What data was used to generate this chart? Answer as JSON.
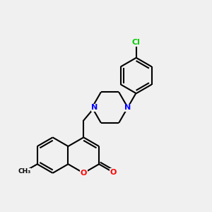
{
  "background_color": "#f0f0f0",
  "bond_color": "#000000",
  "bond_width": 1.5,
  "atom_colors": {
    "N": "#0000ff",
    "O": "#ff0000",
    "Cl": "#00cc00",
    "C": "#000000"
  },
  "font_size_atoms": 8,
  "figsize": [
    3.0,
    3.0
  ],
  "dpi": 100
}
